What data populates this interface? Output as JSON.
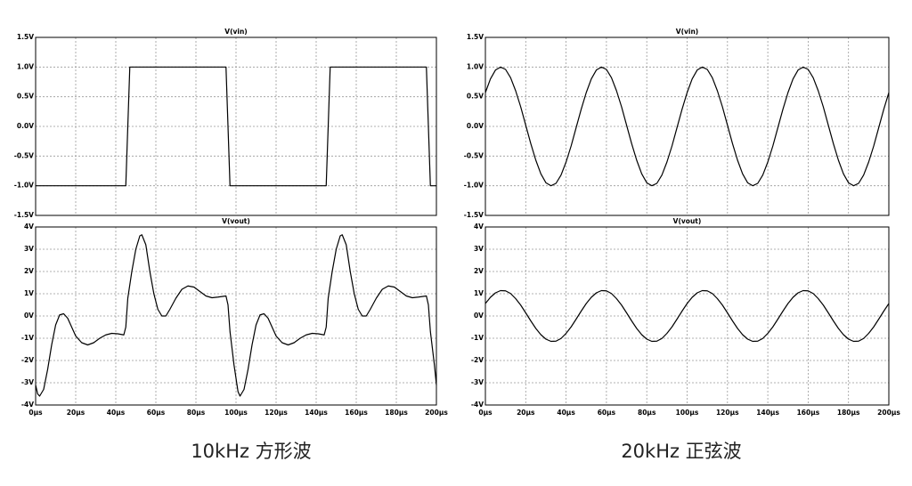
{
  "chart_data": [
    {
      "type": "line",
      "title": "V(vin)",
      "color": "#000000",
      "grid": true,
      "xlim": [
        0,
        200
      ],
      "ylim": [
        -1.5,
        1.5
      ],
      "xticks": [
        0,
        20,
        40,
        60,
        80,
        100,
        120,
        140,
        160,
        180,
        200
      ],
      "yticks": [
        {
          "value": -1.5,
          "label": "-1.5V"
        },
        {
          "value": -1.0,
          "label": "-1.0V"
        },
        {
          "value": -0.5,
          "label": "-0.5V"
        },
        {
          "value": 0,
          "label": "0.0V"
        },
        {
          "value": 0.5,
          "label": "0.5V"
        },
        {
          "value": 1.0,
          "label": "1.0V"
        },
        {
          "value": 1.5,
          "label": "1.5V"
        }
      ],
      "x": [
        0,
        45,
        47,
        95,
        97,
        145,
        147,
        195,
        197,
        200
      ],
      "values": [
        -1,
        -1,
        1,
        1,
        -1,
        -1,
        1,
        1,
        -1,
        -1
      ]
    },
    {
      "type": "line",
      "title": "V(vout)",
      "color": "#000000",
      "grid": true,
      "xlim": [
        0,
        200
      ],
      "ylim": [
        -4,
        4
      ],
      "xticks": [
        {
          "value": 0,
          "label": "0µs"
        },
        {
          "value": 20,
          "label": "20µs"
        },
        {
          "value": 40,
          "label": "40µs"
        },
        {
          "value": 60,
          "label": "60µs"
        },
        {
          "value": 80,
          "label": "80µs"
        },
        {
          "value": 100,
          "label": "100µs"
        },
        {
          "value": 120,
          "label": "120µs"
        },
        {
          "value": 140,
          "label": "140µs"
        },
        {
          "value": 160,
          "label": "160µs"
        },
        {
          "value": 180,
          "label": "180µs"
        },
        {
          "value": 200,
          "label": "200µs"
        }
      ],
      "yticks": [
        {
          "value": -4,
          "label": "-4V"
        },
        {
          "value": -3,
          "label": "-3V"
        },
        {
          "value": -2,
          "label": "-2V"
        },
        {
          "value": -1,
          "label": "-1V"
        },
        {
          "value": 0,
          "label": "0V"
        },
        {
          "value": 1,
          "label": "1V"
        },
        {
          "value": 2,
          "label": "2V"
        },
        {
          "value": 3,
          "label": "3V"
        },
        {
          "value": 4,
          "label": "4V"
        }
      ],
      "x": [
        0,
        1,
        2,
        4,
        6,
        8,
        10,
        12,
        14,
        16,
        18,
        20,
        23,
        26,
        29,
        32,
        35,
        38,
        41,
        44,
        45,
        46,
        48,
        50,
        52,
        53,
        55,
        57,
        59,
        61,
        63,
        65,
        67,
        70,
        73,
        76,
        79,
        82,
        85,
        88,
        91,
        95,
        96,
        97,
        99,
        101,
        102,
        104,
        106,
        108,
        110,
        112,
        114,
        116,
        118,
        120,
        123,
        126,
        129,
        132,
        135,
        138,
        141,
        144,
        145,
        146,
        148,
        150,
        152,
        153,
        155,
        157,
        159,
        161,
        163,
        165,
        167,
        170,
        173,
        176,
        179,
        182,
        185,
        188,
        191,
        195,
        196,
        197,
        199,
        200
      ],
      "values": [
        -3.1,
        -3.5,
        -3.6,
        -3.3,
        -2.4,
        -1.3,
        -0.4,
        0.05,
        0.1,
        -0.1,
        -0.5,
        -0.9,
        -1.2,
        -1.3,
        -1.2,
        -1.0,
        -0.85,
        -0.78,
        -0.8,
        -0.85,
        -0.5,
        0.8,
        2.0,
        3.0,
        3.6,
        3.65,
        3.2,
        2.0,
        1.0,
        0.3,
        0.0,
        0.0,
        0.3,
        0.8,
        1.2,
        1.35,
        1.3,
        1.1,
        0.9,
        0.82,
        0.85,
        0.9,
        0.5,
        -0.7,
        -2.2,
        -3.4,
        -3.6,
        -3.3,
        -2.4,
        -1.3,
        -0.4,
        0.05,
        0.1,
        -0.1,
        -0.5,
        -0.9,
        -1.2,
        -1.3,
        -1.2,
        -1.0,
        -0.85,
        -0.78,
        -0.8,
        -0.85,
        -0.5,
        0.8,
        2.0,
        3.0,
        3.6,
        3.65,
        3.2,
        2.0,
        1.0,
        0.3,
        0.0,
        0.0,
        0.3,
        0.8,
        1.2,
        1.35,
        1.3,
        1.1,
        0.9,
        0.82,
        0.85,
        0.9,
        0.5,
        -0.7,
        -2.2,
        -3.1
      ]
    },
    {
      "type": "line",
      "title": "V(vin)",
      "color": "#000000",
      "grid": true,
      "xlim": [
        0,
        200
      ],
      "ylim": [
        -1.5,
        1.5
      ],
      "xticks": [
        0,
        20,
        40,
        60,
        80,
        100,
        120,
        140,
        160,
        180,
        200
      ],
      "yticks": [
        {
          "value": -1.5,
          "label": "-1.5V"
        },
        {
          "value": -1.0,
          "label": "-1.0V"
        },
        {
          "value": -0.5,
          "label": "-0.5V"
        },
        {
          "value": 0,
          "label": "0.0V"
        },
        {
          "value": 0.5,
          "label": "0.5V"
        },
        {
          "value": 1.0,
          "label": "1.0V"
        },
        {
          "value": 1.5,
          "label": "1.5V"
        }
      ],
      "x": [
        0,
        2.5,
        5,
        7.5,
        10,
        12.5,
        15,
        17.5,
        20,
        22.5,
        25,
        27.5,
        30,
        32.5,
        35,
        37.5,
        40,
        42.5,
        45,
        47.5,
        50,
        52.5,
        55,
        57.5,
        60,
        62.5,
        65,
        67.5,
        70,
        72.5,
        75,
        77.5,
        80,
        82.5,
        85,
        87.5,
        90,
        92.5,
        95,
        97.5,
        100,
        102.5,
        105,
        107.5,
        110,
        112.5,
        115,
        117.5,
        120,
        122.5,
        125,
        127.5,
        130,
        132.5,
        135,
        137.5,
        140,
        142.5,
        145,
        147.5,
        150,
        152.5,
        155,
        157.5,
        160,
        162.5,
        165,
        167.5,
        170,
        172.5,
        175,
        177.5,
        180,
        182.5,
        185,
        187.5,
        190,
        192.5,
        195,
        197.5,
        200
      ],
      "values": [
        0.57,
        0.8,
        0.95,
        1.0,
        0.96,
        0.82,
        0.6,
        0.33,
        0.02,
        -0.29,
        -0.57,
        -0.8,
        -0.95,
        -1.0,
        -0.96,
        -0.82,
        -0.6,
        -0.33,
        -0.02,
        0.29,
        0.57,
        0.8,
        0.95,
        1.0,
        0.96,
        0.82,
        0.6,
        0.33,
        0.02,
        -0.29,
        -0.57,
        -0.8,
        -0.95,
        -1.0,
        -0.96,
        -0.82,
        -0.6,
        -0.33,
        -0.02,
        0.29,
        0.57,
        0.8,
        0.95,
        1.0,
        0.96,
        0.82,
        0.6,
        0.33,
        0.02,
        -0.29,
        -0.57,
        -0.8,
        -0.95,
        -1.0,
        -0.96,
        -0.82,
        -0.6,
        -0.33,
        -0.02,
        0.29,
        0.57,
        0.8,
        0.95,
        1.0,
        0.96,
        0.82,
        0.6,
        0.33,
        0.02,
        -0.29,
        -0.57,
        -0.8,
        -0.95,
        -1.0,
        -0.96,
        -0.82,
        -0.6,
        -0.33,
        -0.02,
        0.29,
        0.57
      ]
    },
    {
      "type": "line",
      "title": "V(vout)",
      "color": "#000000",
      "grid": true,
      "xlim": [
        0,
        200
      ],
      "ylim": [
        -4,
        4
      ],
      "xticks": [
        {
          "value": 0,
          "label": "0µs"
        },
        {
          "value": 20,
          "label": "20µs"
        },
        {
          "value": 40,
          "label": "40µs"
        },
        {
          "value": 60,
          "label": "60µs"
        },
        {
          "value": 80,
          "label": "80µs"
        },
        {
          "value": 100,
          "label": "100µs"
        },
        {
          "value": 120,
          "label": "120µs"
        },
        {
          "value": 140,
          "label": "140µs"
        },
        {
          "value": 160,
          "label": "160µs"
        },
        {
          "value": 180,
          "label": "180µs"
        },
        {
          "value": 200,
          "label": "200µs"
        }
      ],
      "yticks": [
        {
          "value": -4,
          "label": "-4V"
        },
        {
          "value": -3,
          "label": "-3V"
        },
        {
          "value": -2,
          "label": "-2V"
        },
        {
          "value": -1,
          "label": "-1V"
        },
        {
          "value": 0,
          "label": "0V"
        },
        {
          "value": 1,
          "label": "1V"
        },
        {
          "value": 2,
          "label": "2V"
        },
        {
          "value": 3,
          "label": "3V"
        },
        {
          "value": 4,
          "label": "4V"
        }
      ],
      "x": [
        0,
        2.5,
        5,
        7.5,
        10,
        12.5,
        15,
        17.5,
        20,
        22.5,
        25,
        27.5,
        30,
        32.5,
        35,
        37.5,
        40,
        42.5,
        45,
        47.5,
        50,
        52.5,
        55,
        57.5,
        60,
        62.5,
        65,
        67.5,
        70,
        72.5,
        75,
        77.5,
        80,
        82.5,
        85,
        87.5,
        90,
        92.5,
        95,
        97.5,
        100,
        102.5,
        105,
        107.5,
        110,
        112.5,
        115,
        117.5,
        120,
        122.5,
        125,
        127.5,
        130,
        132.5,
        135,
        137.5,
        140,
        142.5,
        145,
        147.5,
        150,
        152.5,
        155,
        157.5,
        160,
        162.5,
        165,
        167.5,
        170,
        172.5,
        175,
        177.5,
        180,
        182.5,
        185,
        187.5,
        190,
        192.5,
        195,
        197.5,
        200
      ],
      "values": [
        0.56,
        0.84,
        1.04,
        1.14,
        1.13,
        1.01,
        0.78,
        0.49,
        0.14,
        -0.22,
        -0.56,
        -0.84,
        -1.04,
        -1.14,
        -1.13,
        -1.01,
        -0.78,
        -0.49,
        -0.14,
        0.22,
        0.56,
        0.84,
        1.04,
        1.14,
        1.13,
        1.01,
        0.78,
        0.49,
        0.14,
        -0.22,
        -0.56,
        -0.84,
        -1.04,
        -1.14,
        -1.13,
        -1.01,
        -0.78,
        -0.49,
        -0.14,
        0.22,
        0.56,
        0.84,
        1.04,
        1.14,
        1.13,
        1.01,
        0.78,
        0.49,
        0.14,
        -0.22,
        -0.56,
        -0.84,
        -1.04,
        -1.14,
        -1.13,
        -1.01,
        -0.78,
        -0.49,
        -0.14,
        0.22,
        0.56,
        0.84,
        1.04,
        1.14,
        1.13,
        1.01,
        0.78,
        0.49,
        0.14,
        -0.22,
        -0.56,
        -0.84,
        -1.04,
        -1.14,
        -1.13,
        -1.01,
        -0.78,
        -0.49,
        -0.14,
        0.22,
        0.56
      ]
    }
  ],
  "captions": [
    "10kHz 方形波",
    "20kHz 正弦波"
  ]
}
